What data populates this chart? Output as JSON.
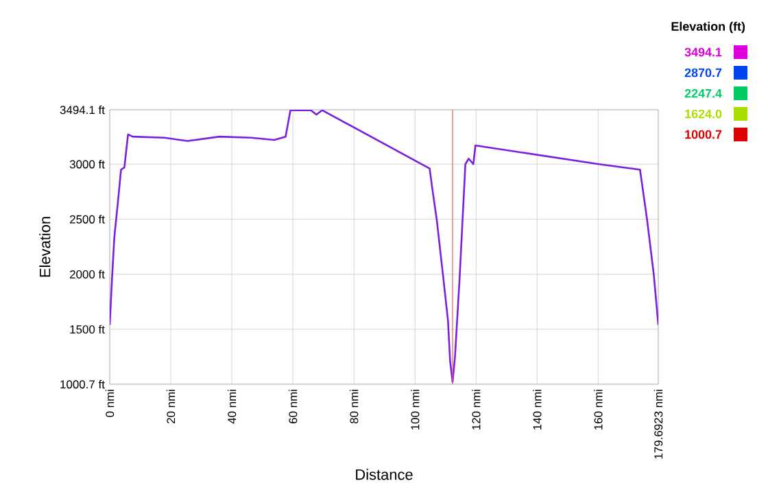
{
  "chart_data": {
    "type": "line",
    "xlabel": "Distance",
    "ylabel": "Elevation",
    "annotations": [
      "Elevation (ft)",
      "3494.1",
      "2870.7",
      "2247.4",
      "1624.0",
      "1000.7"
    ],
    "xlim": [
      0,
      179.6923
    ],
    "ylim": [
      1000.7,
      3494.1
    ],
    "xticks": [
      {
        "value": 0,
        "label": "0 nmi"
      },
      {
        "value": 20,
        "label": "20 nmi"
      },
      {
        "value": 40,
        "label": "40 nmi"
      },
      {
        "value": 60,
        "label": "60 nmi"
      },
      {
        "value": 80,
        "label": "80 nmi"
      },
      {
        "value": 100,
        "label": "100 nmi"
      },
      {
        "value": 120,
        "label": "120 nmi"
      },
      {
        "value": 140,
        "label": "140 nmi"
      },
      {
        "value": 160,
        "label": "160 nmi"
      },
      {
        "value": 179.6923,
        "label": "179.6923 nmi"
      }
    ],
    "yticks": [
      {
        "value": 1000.7,
        "label": "1000.7 ft"
      },
      {
        "value": 1500,
        "label": "1500 ft"
      },
      {
        "value": 2000,
        "label": "2000 ft"
      },
      {
        "value": 2500,
        "label": "2500 ft"
      },
      {
        "value": 3000,
        "label": "3000 ft"
      },
      {
        "value": 3494.1,
        "label": "3494.1 ft"
      }
    ],
    "grid": true,
    "ref_lines": [
      {
        "axis": "x",
        "value": 112.3,
        "color": "#e06060"
      }
    ],
    "series": [
      {
        "x": [
          0,
          0.75,
          1.5,
          2.7,
          3.7,
          4.8,
          6.0,
          7.5,
          18,
          25.5,
          36,
          46.4,
          53.9,
          57.6,
          59.2,
          62.9,
          65.9,
          67.7,
          69.6,
          104.8,
          105.6,
          107.1,
          109.3,
          110.8,
          111.5,
          112.3,
          113.1,
          114.6,
          116.5,
          117.6,
          119.1,
          119.8,
          160.2,
          173.7,
          176.0,
          178.2,
          179.6923
        ],
        "color": "#7a1ee0",
        "values": [
          1540,
          1960,
          2330,
          2660,
          2950,
          2970,
          3270,
          3250,
          3240,
          3210,
          3250,
          3240,
          3220,
          3250,
          3490,
          3490,
          3490,
          3450,
          3490,
          2960,
          2790,
          2500,
          1960,
          1580,
          1210,
          1020,
          1250,
          1960,
          3000,
          3050,
          3000,
          3170,
          3000,
          2950,
          2500,
          2000,
          1540
        ]
      }
    ]
  }
}
